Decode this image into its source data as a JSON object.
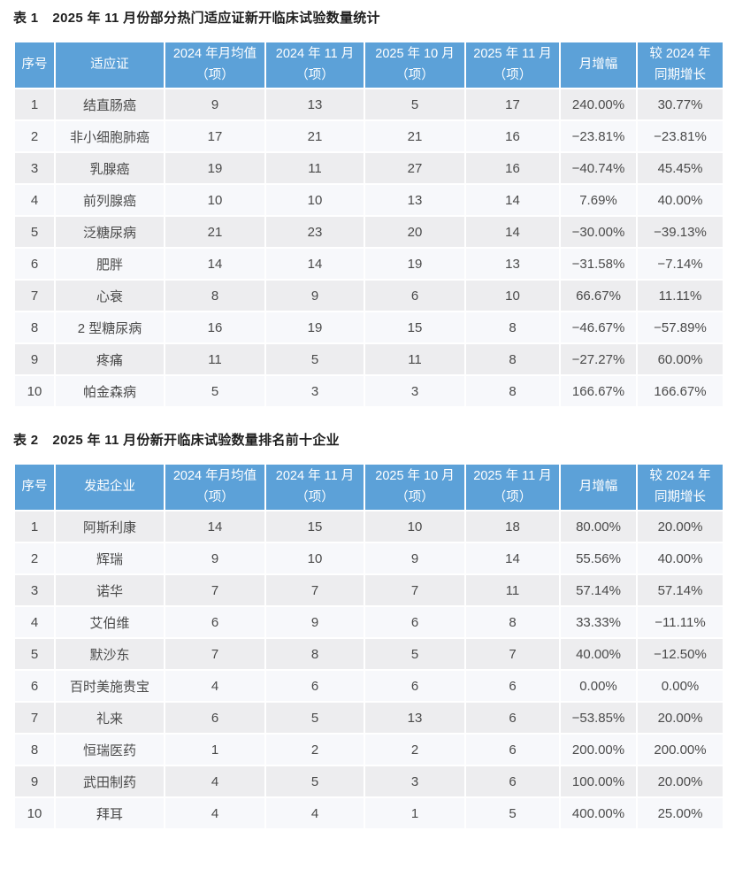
{
  "colors": {
    "header_bg": "#5CA1D8",
    "header_text": "#FFFFFF",
    "row_odd_bg": "#EDEDEF",
    "row_even_bg": "#F7F8FB",
    "body_text": "#4A4A4A",
    "title_text": "#1F1F1F",
    "page_bg": "#FFFFFF"
  },
  "tables": [
    {
      "title_label": "表 1",
      "title_text": "2025 年 11 月份部分热门适应证新开临床试验数量统计",
      "columns": [
        "序号",
        "适应证",
        "2024 年月均值\n（项）",
        "2024 年 11 月\n（项）",
        "2025 年 10 月\n（项）",
        "2025 年 11 月\n（项）",
        "月增幅",
        "较 2024 年\n同期增长"
      ],
      "rows": [
        [
          "1",
          "结直肠癌",
          "9",
          "13",
          "5",
          "17",
          "240.00%",
          "30.77%"
        ],
        [
          "2",
          "非小细胞肺癌",
          "17",
          "21",
          "21",
          "16",
          "−23.81%",
          "−23.81%"
        ],
        [
          "3",
          "乳腺癌",
          "19",
          "11",
          "27",
          "16",
          "−40.74%",
          "45.45%"
        ],
        [
          "4",
          "前列腺癌",
          "10",
          "10",
          "13",
          "14",
          "7.69%",
          "40.00%"
        ],
        [
          "5",
          "泛糖尿病",
          "21",
          "23",
          "20",
          "14",
          "−30.00%",
          "−39.13%"
        ],
        [
          "6",
          "肥胖",
          "14",
          "14",
          "19",
          "13",
          "−31.58%",
          "−7.14%"
        ],
        [
          "7",
          "心衰",
          "8",
          "9",
          "6",
          "10",
          "66.67%",
          "11.11%"
        ],
        [
          "8",
          "2 型糖尿病",
          "16",
          "19",
          "15",
          "8",
          "−46.67%",
          "−57.89%"
        ],
        [
          "9",
          "疼痛",
          "11",
          "5",
          "11",
          "8",
          "−27.27%",
          "60.00%"
        ],
        [
          "10",
          "帕金森病",
          "5",
          "3",
          "3",
          "8",
          "166.67%",
          "166.67%"
        ]
      ]
    },
    {
      "title_label": "表 2",
      "title_text": "2025 年 11 月份新开临床试验数量排名前十企业",
      "columns": [
        "序号",
        "发起企业",
        "2024 年月均值\n（项）",
        "2024 年 11 月\n（项）",
        "2025 年 10 月\n（项）",
        "2025 年 11 月\n（项）",
        "月增幅",
        "较 2024 年\n同期增长"
      ],
      "rows": [
        [
          "1",
          "阿斯利康",
          "14",
          "15",
          "10",
          "18",
          "80.00%",
          "20.00%"
        ],
        [
          "2",
          "辉瑞",
          "9",
          "10",
          "9",
          "14",
          "55.56%",
          "40.00%"
        ],
        [
          "3",
          "诺华",
          "7",
          "7",
          "7",
          "11",
          "57.14%",
          "57.14%"
        ],
        [
          "4",
          "艾伯维",
          "6",
          "9",
          "6",
          "8",
          "33.33%",
          "−11.11%"
        ],
        [
          "5",
          "默沙东",
          "7",
          "8",
          "5",
          "7",
          "40.00%",
          "−12.50%"
        ],
        [
          "6",
          "百时美施贵宝",
          "4",
          "6",
          "6",
          "6",
          "0.00%",
          "0.00%"
        ],
        [
          "7",
          "礼来",
          "6",
          "5",
          "13",
          "6",
          "−53.85%",
          "20.00%"
        ],
        [
          "8",
          "恒瑞医药",
          "1",
          "2",
          "2",
          "6",
          "200.00%",
          "200.00%"
        ],
        [
          "9",
          "武田制药",
          "4",
          "5",
          "3",
          "6",
          "100.00%",
          "20.00%"
        ],
        [
          "10",
          "拜耳",
          "4",
          "4",
          "1",
          "5",
          "400.00%",
          "25.00%"
        ]
      ]
    }
  ]
}
